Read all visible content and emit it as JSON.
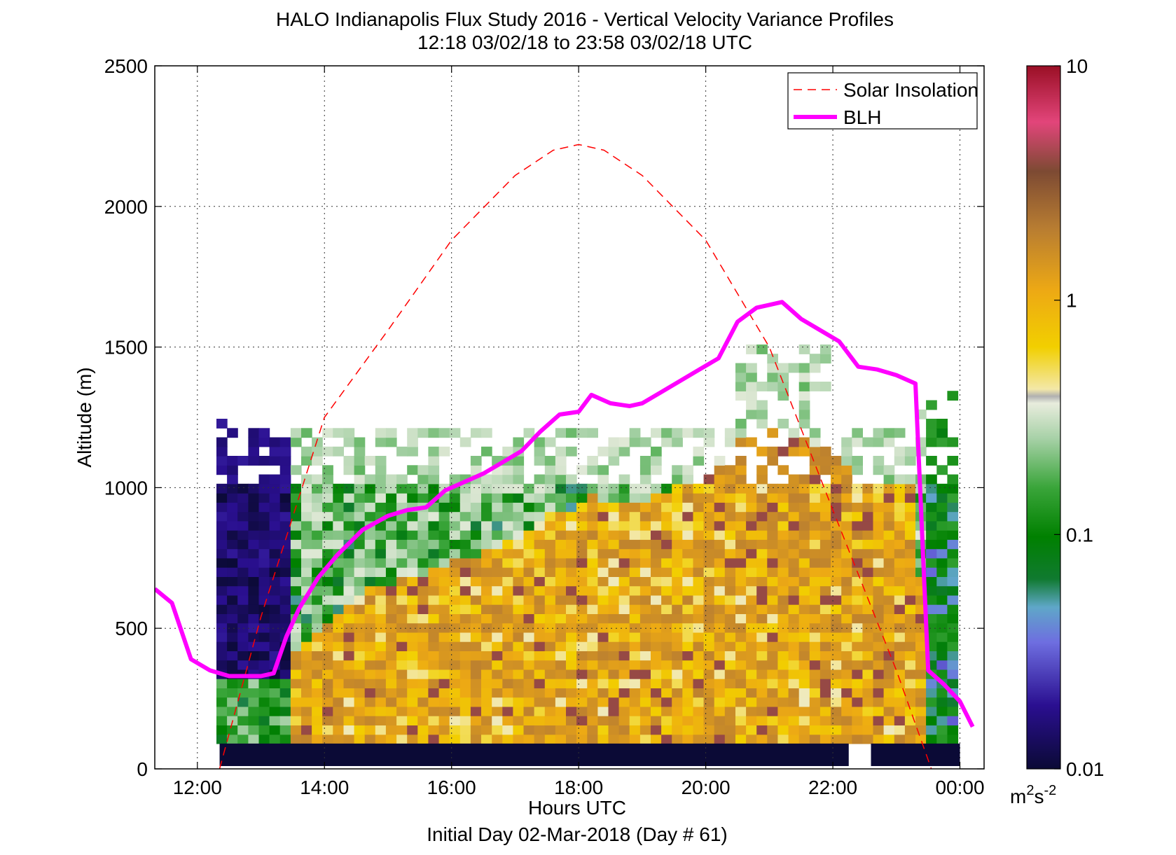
{
  "chart_data": {
    "type": "heatmap",
    "title": "HALO Indianapolis Flux Study 2016 - Vertical Velocity Variance Profiles",
    "subtitle": "12:18 03/02/18 to 23:58 03/02/18  UTC",
    "xlabel": "Hours UTC",
    "xlabel_note": "Initial Day 02-Mar-2018 (Day # 61)",
    "ylabel": "Altitude (m)",
    "xlim": [
      11.33,
      24.38
    ],
    "ylim": [
      0,
      2500
    ],
    "x_ticks": [
      12,
      14,
      16,
      18,
      20,
      22,
      24
    ],
    "x_tick_labels": [
      "12:00",
      "14:00",
      "16:00",
      "18:00",
      "20:00",
      "22:00",
      "00:00"
    ],
    "y_ticks": [
      0,
      500,
      1000,
      1500,
      2000,
      2500
    ],
    "y_tick_labels": [
      "0",
      "500",
      "1000",
      "1500",
      "2000",
      "2500"
    ],
    "grid": true,
    "legend_position": "top-right",
    "colorbar": {
      "scale": "log",
      "range": [
        0.01,
        10
      ],
      "tick_values": [
        0.01,
        0.1,
        1,
        10
      ],
      "tick_labels": [
        "0.01",
        "0.1",
        "1",
        "10"
      ],
      "unit_base": "m",
      "unit_exp1": "2",
      "unit_mid": "s",
      "unit_exp2": "-2"
    },
    "series": [
      {
        "name": "Solar Insolation",
        "style": "dashed",
        "color": "#ff0000",
        "x": [
          12.35,
          13.0,
          14.0,
          15.0,
          16.0,
          17.0,
          17.6,
          18.0,
          18.4,
          19.0,
          20.0,
          21.0,
          22.0,
          23.0,
          23.55
        ],
        "y": [
          0,
          540,
          1250,
          1560,
          1880,
          2110,
          2200,
          2220,
          2200,
          2110,
          1880,
          1500,
          920,
          350,
          0
        ]
      },
      {
        "name": "BLH",
        "style": "solid",
        "color": "#ff00ff",
        "x": [
          11.33,
          11.6,
          11.9,
          12.2,
          12.5,
          12.8,
          13.0,
          13.2,
          13.4,
          13.6,
          13.9,
          14.2,
          14.6,
          15.0,
          15.3,
          15.6,
          15.9,
          16.2,
          16.5,
          16.8,
          17.1,
          17.4,
          17.7,
          18.0,
          18.2,
          18.5,
          18.8,
          19.0,
          19.3,
          19.6,
          19.9,
          20.2,
          20.5,
          20.8,
          21.0,
          21.2,
          21.5,
          21.8,
          22.1,
          22.4,
          22.7,
          23.0,
          23.3,
          23.5,
          23.75,
          24.0,
          24.2
        ],
        "y": [
          640,
          590,
          390,
          350,
          330,
          330,
          330,
          340,
          470,
          570,
          680,
          760,
          850,
          900,
          920,
          930,
          990,
          1020,
          1050,
          1090,
          1130,
          1200,
          1260,
          1270,
          1330,
          1300,
          1290,
          1300,
          1340,
          1380,
          1420,
          1460,
          1590,
          1640,
          1650,
          1660,
          1600,
          1560,
          1520,
          1430,
          1420,
          1400,
          1370,
          350,
          300,
          240,
          150
        ]
      }
    ],
    "heatmap_summary": {
      "time_start": 12.3,
      "time_end": 24.0,
      "altitude_bottom": 90,
      "altitude_top_typical": 1100,
      "altitude_top_peak": 1480,
      "value_range": [
        0.01,
        3
      ]
    }
  }
}
